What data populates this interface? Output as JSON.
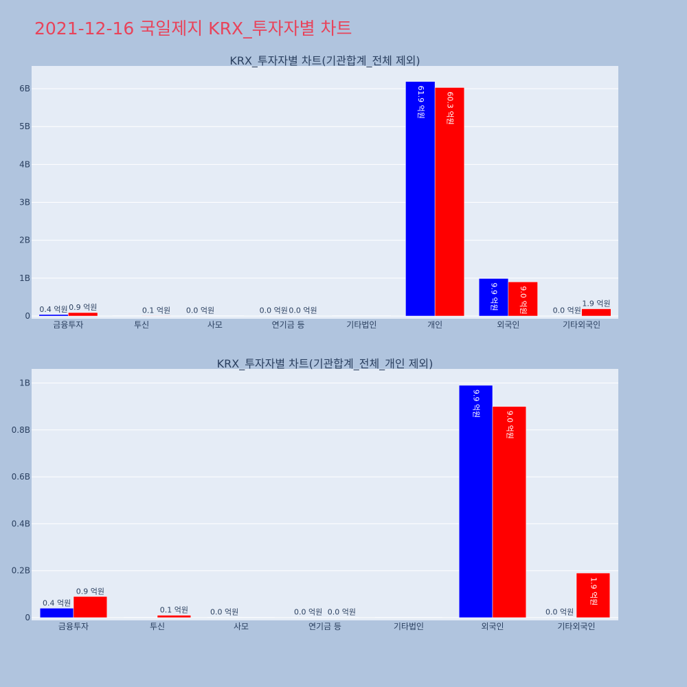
{
  "page_title": "2021-12-16 국일제지 KRX_투자자별 차트",
  "colors": {
    "series1": "#0000ff",
    "series2": "#ff0000",
    "title": "#e8435a",
    "plot_bg": "#e5ecf6",
    "page_bg": "#b0c4de"
  },
  "chart_data": [
    {
      "type": "bar",
      "title": "KRX_투자자별 차트(기관합계_전체 제외)",
      "categories": [
        "금융투자",
        "투신",
        "사모",
        "연기금 등",
        "기타법인",
        "개인",
        "외국인",
        "기타외국인"
      ],
      "ylim": [
        0,
        6.6
      ],
      "yticks": [
        0,
        1,
        2,
        3,
        4,
        5,
        6
      ],
      "ytick_labels": [
        "0",
        "1B",
        "2B",
        "3B",
        "4B",
        "5B",
        "6B"
      ],
      "series": [
        {
          "values": [
            0.04,
            0.0,
            0.0,
            0.0,
            0.0,
            6.19,
            0.99,
            0.0
          ],
          "labels": [
            "0.4 억원",
            "",
            "0.0 억원",
            "0.0 억원",
            "",
            "61.9 억원",
            "9.9 억원",
            "0.0 억원"
          ]
        },
        {
          "values": [
            0.09,
            0.01,
            0.0,
            0.0,
            0.0,
            6.03,
            0.9,
            0.19
          ],
          "labels": [
            "0.9 억원",
            "0.1 억원",
            "",
            "0.0 억원",
            "",
            "60.3 억원",
            "9.0 억원",
            "1.9 억원"
          ]
        }
      ]
    },
    {
      "type": "bar",
      "title": "KRX_투자자별 차트(기관합계_전체_개인 제외)",
      "categories": [
        "금융투자",
        "투신",
        "사모",
        "연기금 등",
        "기타법인",
        "외국인",
        "기타외국인"
      ],
      "ylim": [
        0,
        1.06
      ],
      "yticks": [
        0,
        0.2,
        0.4,
        0.6,
        0.8,
        1.0
      ],
      "ytick_labels": [
        "0",
        "0.2B",
        "0.4B",
        "0.6B",
        "0.8B",
        "1B"
      ],
      "series": [
        {
          "values": [
            0.04,
            0.0,
            0.0,
            0.0,
            0.0,
            0.99,
            0.0
          ],
          "labels": [
            "0.4 억원",
            "",
            "0.0 억원",
            "0.0 억원",
            "",
            "9.9 억원",
            "0.0 억원"
          ]
        },
        {
          "values": [
            0.09,
            0.01,
            0.0,
            0.0,
            0.0,
            0.9,
            0.19
          ],
          "labels": [
            "0.9 억원",
            "0.1 억원",
            "",
            "0.0 억원",
            "",
            "9.0 억원",
            "1.9 억원"
          ]
        }
      ]
    }
  ]
}
